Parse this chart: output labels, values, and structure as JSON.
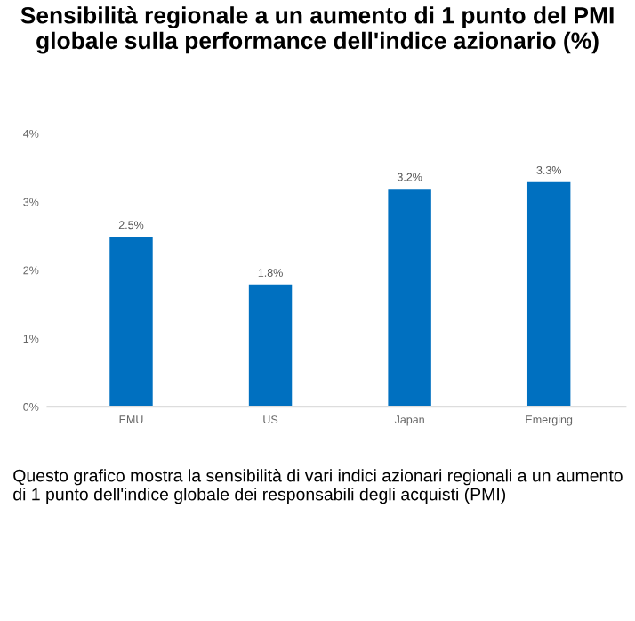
{
  "chart_data": {
    "type": "bar",
    "title": "Sensibilità regionale a un aumento di 1 punto del PMI globale sulla performance dell'indice azionario (%)",
    "categories": [
      "EMU",
      "US",
      "Japan",
      "Emerging"
    ],
    "values": [
      2.5,
      1.8,
      3.2,
      3.3
    ],
    "value_labels": [
      "2.5%",
      "1.8%",
      "3.2%",
      "3.3%"
    ],
    "color": "#0070c0",
    "ylim": [
      0,
      4
    ],
    "yticks": [
      {
        "value": 0,
        "label": "0%"
      },
      {
        "value": 1,
        "label": "1%"
      },
      {
        "value": 2,
        "label": "2%"
      },
      {
        "value": 3,
        "label": "3%"
      },
      {
        "value": 4,
        "label": "4%"
      }
    ],
    "grid": false,
    "annotations": [
      "Questo grafico mostra la sensibilità di vari indici azionari regionali a un aumento di 1 punto dell'indice globale dei responsabili degli acquisti (PMI)"
    ]
  }
}
